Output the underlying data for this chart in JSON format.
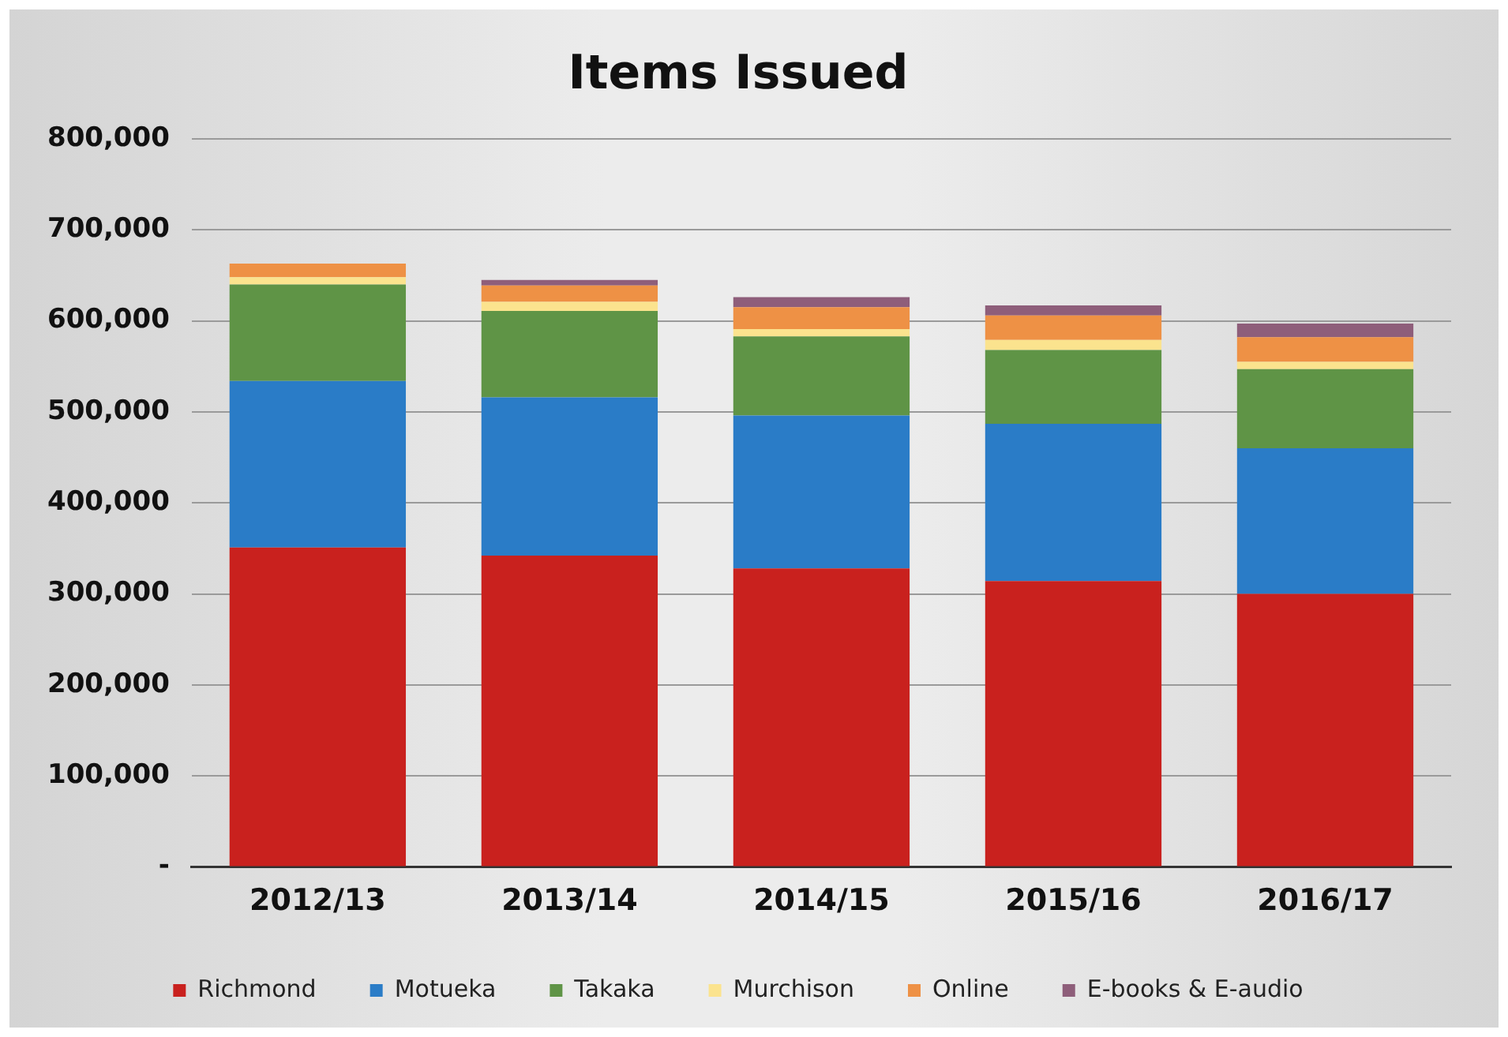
{
  "chart_data": {
    "type": "bar",
    "title": "Items Issued",
    "stacked": true,
    "categories": [
      "2012/13",
      "2013/14",
      "2014/15",
      "2015/16",
      "2016/17"
    ],
    "series": [
      {
        "name": "Richmond",
        "color": "#c9211e",
        "values": [
          351000,
          342000,
          328000,
          314000,
          300000
        ]
      },
      {
        "name": "Motueka",
        "color": "#2a7cc7",
        "values": [
          183000,
          174000,
          168000,
          173000,
          160000
        ]
      },
      {
        "name": "Takaka",
        "color": "#5f9446",
        "values": [
          106000,
          95000,
          87000,
          81000,
          87000
        ]
      },
      {
        "name": "Murchison",
        "color": "#fbe38e",
        "values": [
          8000,
          10000,
          8000,
          11000,
          8000
        ]
      },
      {
        "name": "Online",
        "color": "#ee9145",
        "values": [
          15000,
          18000,
          24000,
          27000,
          27000
        ]
      },
      {
        "name": "E-books & E-audio",
        "color": "#8e5e7a",
        "values": [
          0,
          6000,
          11000,
          11000,
          15000
        ]
      }
    ],
    "ylim": [
      0,
      800000
    ],
    "yticks": [
      {
        "value": 0,
        "label": "-"
      },
      {
        "value": 100000,
        "label": "100,000"
      },
      {
        "value": 200000,
        "label": "200,000"
      },
      {
        "value": 300000,
        "label": "300,000"
      },
      {
        "value": 400000,
        "label": "400,000"
      },
      {
        "value": 500000,
        "label": "500,000"
      },
      {
        "value": 600000,
        "label": "600,000"
      },
      {
        "value": 700000,
        "label": "700,000"
      },
      {
        "value": 800000,
        "label": "800,000"
      }
    ],
    "grid": "y",
    "legend": "bottom"
  }
}
